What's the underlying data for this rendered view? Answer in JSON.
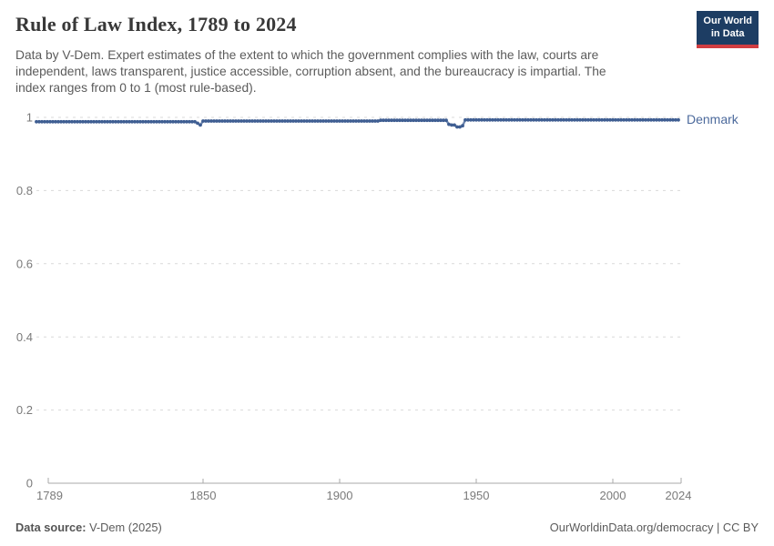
{
  "header": {
    "title": "Rule of Law Index, 1789 to 2024",
    "subtitle_lines": [
      "Data by V-Dem. Expert estimates of the extent to which the government complies with the law, courts are",
      "independent, laws transparent, justice accessible, corruption absent, and the bureaucracy is impartial. The",
      "index ranges from 0 to 1 (most rule-based)."
    ],
    "logo": {
      "line1": "Our World",
      "line2": "in Data"
    }
  },
  "footer": {
    "source_label": "Data source:",
    "source_value": " V-Dem (2025)",
    "credit": "OurWorldinData.org/democracy | CC BY"
  },
  "colors": {
    "line": "#4c6a9c",
    "marker": "#3f5e92",
    "gridline": "#d9d9d9",
    "axis": "#a8a8a8",
    "tick_text": "#7a7a7a",
    "logo_bg": "#1d3d63",
    "logo_red": "#d13d41"
  },
  "chart_data": {
    "type": "line",
    "title": "Rule of Law Index, 1789 to 2024",
    "entity_label": "Denmark",
    "xlabel": "",
    "ylabel": "",
    "xlim": [
      1789,
      2024
    ],
    "ylim": [
      0,
      1
    ],
    "x_ticks": [
      1789,
      1850,
      1900,
      1950,
      2000,
      2024
    ],
    "y_ticks": [
      0,
      0.2,
      0.4,
      0.6,
      0.8,
      1
    ],
    "grid": "horizontal-dashed",
    "legend_position": "end-of-line-label",
    "marker": "circle-every-year",
    "series": [
      {
        "name": "Denmark",
        "color": "#4c6a9c",
        "x_step": 1,
        "segments": [
          {
            "from": 1789,
            "to": 1847,
            "value": 0.988
          },
          {
            "from": 1848,
            "to": 1848,
            "value": 0.984
          },
          {
            "from": 1849,
            "to": 1849,
            "value": 0.979
          },
          {
            "from": 1850,
            "to": 1914,
            "value": 0.99
          },
          {
            "from": 1915,
            "to": 1939,
            "value": 0.992
          },
          {
            "from": 1940,
            "to": 1940,
            "value": 0.981
          },
          {
            "from": 1941,
            "to": 1942,
            "value": 0.979
          },
          {
            "from": 1943,
            "to": 1944,
            "value": 0.974
          },
          {
            "from": 1945,
            "to": 1945,
            "value": 0.977
          },
          {
            "from": 1946,
            "to": 2024,
            "value": 0.993
          }
        ]
      }
    ]
  }
}
